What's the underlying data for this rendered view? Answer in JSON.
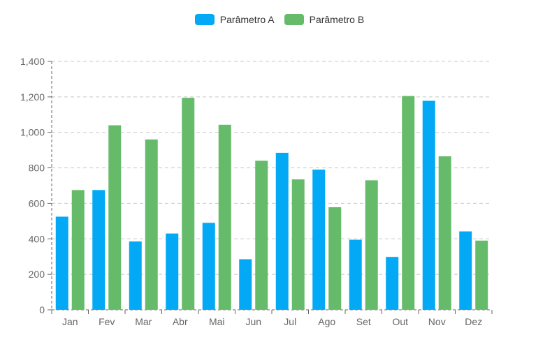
{
  "chart_data": {
    "type": "bar",
    "categories": [
      "Jan",
      "Fev",
      "Mar",
      "Abr",
      "Mai",
      "Jun",
      "Jul",
      "Ago",
      "Set",
      "Out",
      "Nov",
      "Dez"
    ],
    "series": [
      {
        "name": "Parâmetro A",
        "color": "#03a9f4",
        "values": [
          525,
          675,
          385,
          430,
          490,
          285,
          885,
          790,
          395,
          298,
          1178,
          442
        ]
      },
      {
        "name": "Parâmetro B",
        "color": "#66bb6a",
        "values": [
          675,
          1040,
          960,
          1195,
          1043,
          840,
          735,
          578,
          730,
          1205,
          865,
          390
        ]
      }
    ],
    "ylim": [
      0,
      1400
    ],
    "yticks": [
      "0",
      "200",
      "400",
      "600",
      "800",
      "1,000",
      "1,200",
      "1,400"
    ],
    "grid": true,
    "legend": "top-center"
  }
}
